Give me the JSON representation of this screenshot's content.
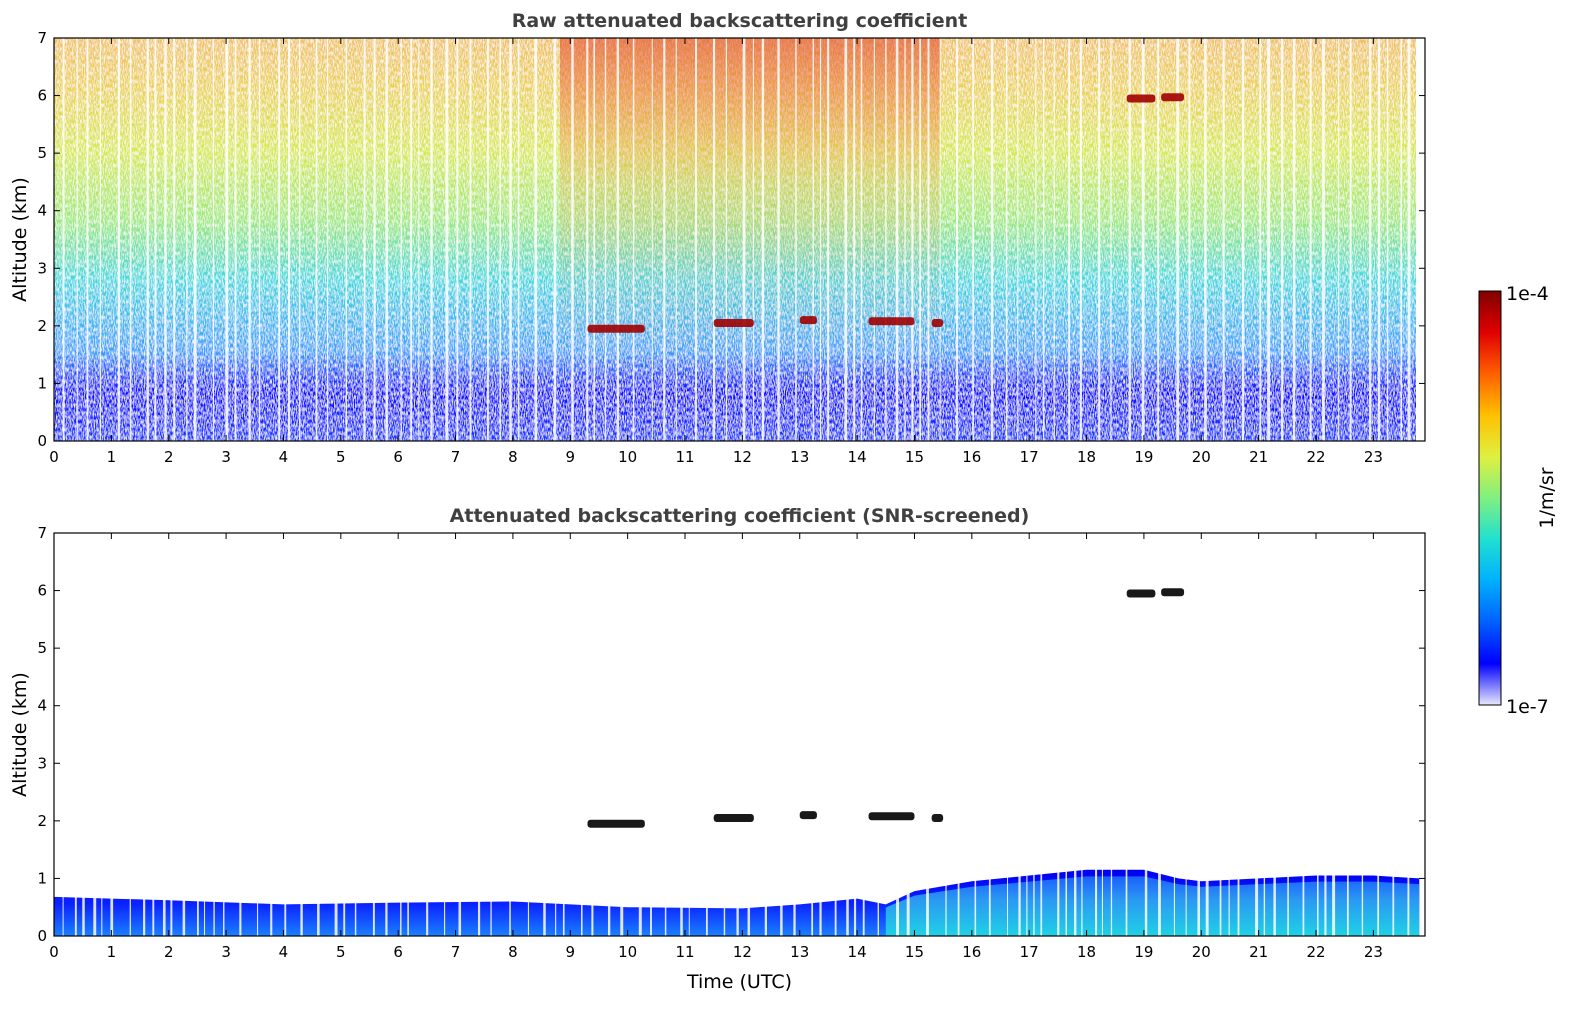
{
  "chart_data": [
    {
      "type": "heatmap",
      "title": "Raw attenuated backscattering coefficient",
      "xlabel": "",
      "ylabel": "Altitude (km)",
      "xlim": [
        0,
        23.9
      ],
      "ylim": [
        0,
        7
      ],
      "xticks": [
        "0",
        "1",
        "2",
        "3",
        "4",
        "5",
        "6",
        "7",
        "8",
        "9",
        "10",
        "11",
        "12",
        "13",
        "14",
        "15",
        "16",
        "17",
        "18",
        "19",
        "20",
        "21",
        "22",
        "23"
      ],
      "yticks": [
        "0",
        "1",
        "2",
        "3",
        "4",
        "5",
        "6",
        "7"
      ],
      "cloud_layers": [
        {
          "t_start": 9.3,
          "t_end": 10.3,
          "altitude_km": 1.95
        },
        {
          "t_start": 11.5,
          "t_end": 12.2,
          "altitude_km": 2.05
        },
        {
          "t_start": 13.0,
          "t_end": 13.3,
          "altitude_km": 2.1
        },
        {
          "t_start": 14.2,
          "t_end": 15.0,
          "altitude_km": 2.08
        },
        {
          "t_start": 15.3,
          "t_end": 15.5,
          "altitude_km": 2.05
        },
        {
          "t_start": 18.7,
          "t_end": 19.2,
          "altitude_km": 5.95
        },
        {
          "t_start": 19.3,
          "t_end": 19.7,
          "altitude_km": 5.97
        }
      ]
    },
    {
      "type": "heatmap",
      "title": "Attenuated backscattering coefficient (SNR-screened)",
      "xlabel": "Time (UTC)",
      "ylabel": "Altitude (km)",
      "xlim": [
        0,
        23.9
      ],
      "ylim": [
        0,
        7
      ],
      "xticks": [
        "0",
        "1",
        "2",
        "3",
        "4",
        "5",
        "6",
        "7",
        "8",
        "9",
        "10",
        "11",
        "12",
        "13",
        "14",
        "15",
        "16",
        "17",
        "18",
        "19",
        "20",
        "21",
        "22",
        "23"
      ],
      "yticks": [
        "0",
        "1",
        "2",
        "3",
        "4",
        "5",
        "6",
        "7"
      ],
      "boundary_layer_top_km": {
        "t": [
          0,
          2,
          4,
          6,
          8,
          10,
          12,
          13,
          14,
          14.5,
          15,
          16,
          17,
          18,
          19,
          19.6,
          20,
          21,
          22,
          23,
          23.8
        ],
        "h": [
          0.68,
          0.62,
          0.55,
          0.58,
          0.6,
          0.5,
          0.48,
          0.55,
          0.65,
          0.55,
          0.78,
          0.95,
          1.05,
          1.15,
          1.15,
          1.0,
          0.95,
          1.0,
          1.05,
          1.05,
          1.0
        ]
      },
      "cloud_layers": [
        {
          "t_start": 9.3,
          "t_end": 10.3,
          "altitude_km": 1.95
        },
        {
          "t_start": 11.5,
          "t_end": 12.2,
          "altitude_km": 2.05
        },
        {
          "t_start": 13.0,
          "t_end": 13.3,
          "altitude_km": 2.1
        },
        {
          "t_start": 14.2,
          "t_end": 15.0,
          "altitude_km": 2.08
        },
        {
          "t_start": 15.3,
          "t_end": 15.5,
          "altitude_km": 2.05
        },
        {
          "t_start": 18.7,
          "t_end": 19.2,
          "altitude_km": 5.95
        },
        {
          "t_start": 19.3,
          "t_end": 19.7,
          "altitude_km": 5.97
        }
      ]
    }
  ],
  "colorbar": {
    "label": "1/m/sr",
    "max_label": "1e-4",
    "min_label": "1e-7",
    "colors": [
      "#e8e8ff",
      "#0000ff",
      "#0060ff",
      "#00b0ff",
      "#20e0d0",
      "#80f080",
      "#e0f040",
      "#ffc000",
      "#ff6000",
      "#e00000",
      "#800000"
    ]
  }
}
